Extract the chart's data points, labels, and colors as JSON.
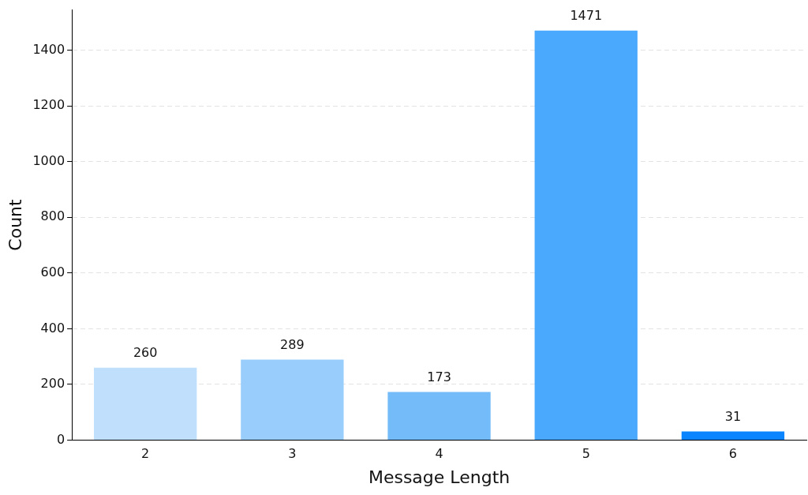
{
  "chart_data": {
    "type": "bar",
    "xlabel": "Message Length",
    "ylabel": "Count",
    "categories": [
      "2",
      "3",
      "4",
      "5",
      "6"
    ],
    "values": [
      260,
      289,
      173,
      1471,
      31
    ],
    "colors": [
      "#bfdffd",
      "#99cdfb",
      "#73bbf9",
      "#4aa8fd",
      "#0a84ff"
    ],
    "ylim": [
      0,
      1545
    ],
    "yticks": [
      0,
      200,
      400,
      600,
      800,
      1000,
      1200,
      1400
    ],
    "grid": "y",
    "data_labels": true
  }
}
